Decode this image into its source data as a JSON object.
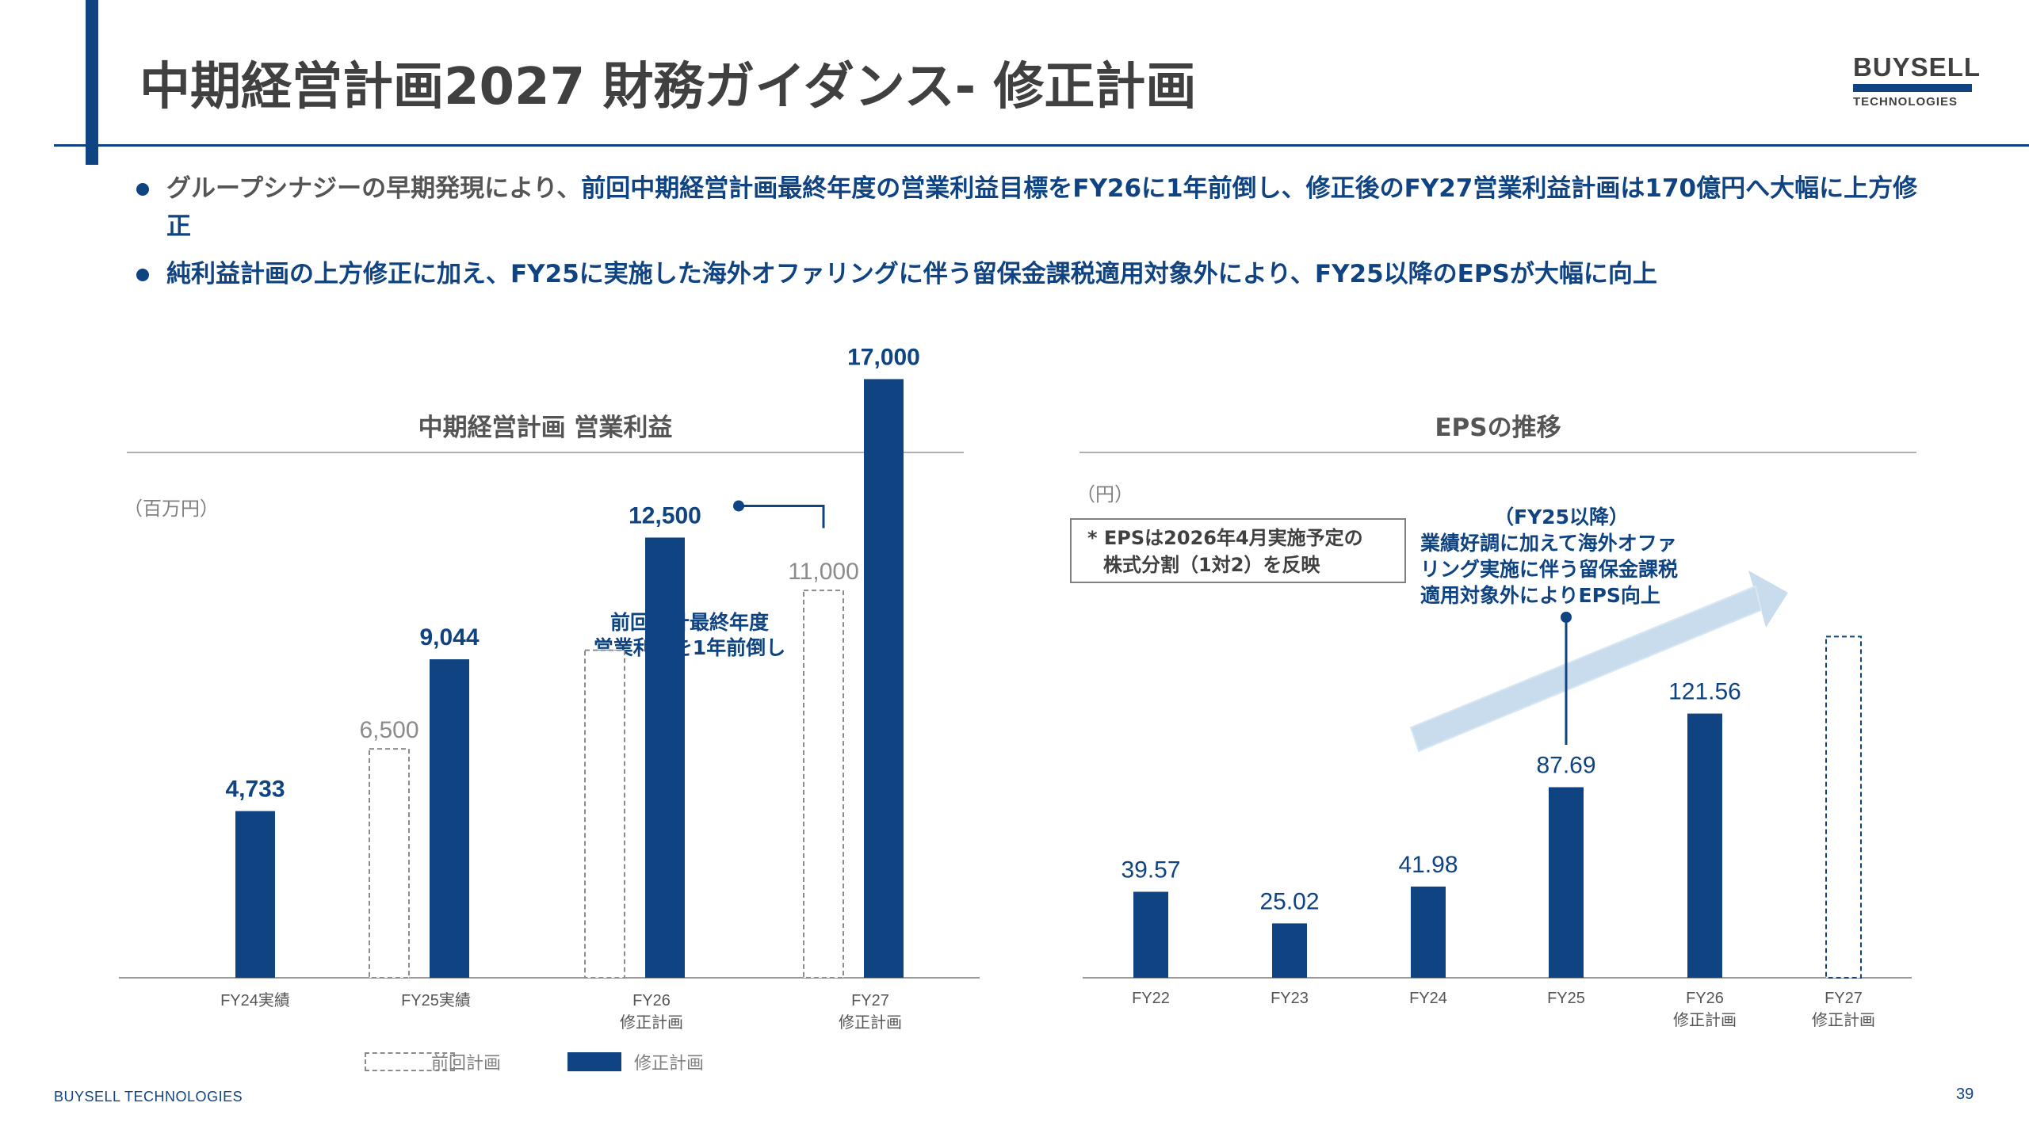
{
  "header": {
    "title": "中期経営計画2027 財務ガイダンス- 修正計画",
    "logo_line1": "BUYSELL",
    "logo_line2": "TECHNOLOGIES"
  },
  "bullets": [
    {
      "prefix": "グループシナジーの早期発現により、",
      "highlight": "前回中期経営計画最終年度の営業利益目標をFY26に1年前倒し、修正後のFY27営業利益計画は170億円へ大幅に上方修正"
    },
    {
      "prefix": "",
      "highlight": "純利益計画の上方修正に加え、FY25に実施した海外オファリングに伴う留保金課税適用対象外により、FY25以降のEPSが大幅に向上"
    }
  ],
  "left_panel": {
    "title": "中期経営計画 営業利益",
    "unit": "（百万円）",
    "callout_line1": "前回中計最終年度",
    "callout_line2": "営業利益を1年前倒し",
    "legend_prev": "前回計画",
    "legend_revised": "修正計画"
  },
  "right_panel": {
    "title": "EPSの推移",
    "unit": "（円）",
    "note_line1": "* EPSは2026年4月実施予定の",
    "note_line2": "株式分割（1対2）を反映",
    "callout_title": "（FY25以降）",
    "callout_line1": "業績好調に加えて海外オファ",
    "callout_line2": "リング実施に伴う留保金課税",
    "callout_line3": "適用対象外によりEPS向上"
  },
  "footer": {
    "brand": "BUYSELL  TECHNOLOGIES",
    "page": "39"
  },
  "colors": {
    "accent": "#0f4382",
    "text": "#404040",
    "muted": "#808080",
    "arrow": "#c9dcee"
  },
  "chart_data": [
    {
      "type": "bar",
      "title": "中期経営計画 営業利益",
      "ylabel": "（百万円）",
      "categories": [
        [
          "FY24実績"
        ],
        [
          "FY25実績"
        ],
        [
          "FY26",
          "修正計画"
        ],
        [
          "FY27",
          "修正計画"
        ]
      ],
      "series": [
        {
          "name": "前回計画",
          "style": "dashed-outline",
          "values": [
            null,
            6500,
            9300,
            11000
          ],
          "labels": [
            null,
            "6,500",
            null,
            "11,000"
          ]
        },
        {
          "name": "修正計画",
          "style": "solid",
          "values": [
            4733,
            9044,
            12500,
            17000
          ],
          "labels": [
            "4,733",
            "9,044",
            "12,500",
            "17,000"
          ]
        }
      ],
      "ylim": [
        0,
        18000
      ],
      "grid": false,
      "legend": "bottom"
    },
    {
      "type": "bar",
      "title": "EPSの推移",
      "ylabel": "（円）",
      "categories": [
        [
          "FY22"
        ],
        [
          "FY23"
        ],
        [
          "FY24"
        ],
        [
          "FY25"
        ],
        [
          "FY26",
          "修正計画"
        ],
        [
          "FY27",
          "修正計画"
        ]
      ],
      "series": [
        {
          "name": "",
          "values": [
            39.57,
            25.02,
            41.98,
            87.69,
            121.56,
            157
          ],
          "labels": [
            "39.57",
            "25.02",
            "41.98",
            "87.69",
            "121.56",
            null
          ],
          "styles": [
            "solid",
            "solid",
            "solid",
            "solid",
            "solid",
            "dashed-outline"
          ]
        }
      ],
      "ylim": [
        0,
        175
      ],
      "grid": false,
      "legend": "none"
    }
  ]
}
